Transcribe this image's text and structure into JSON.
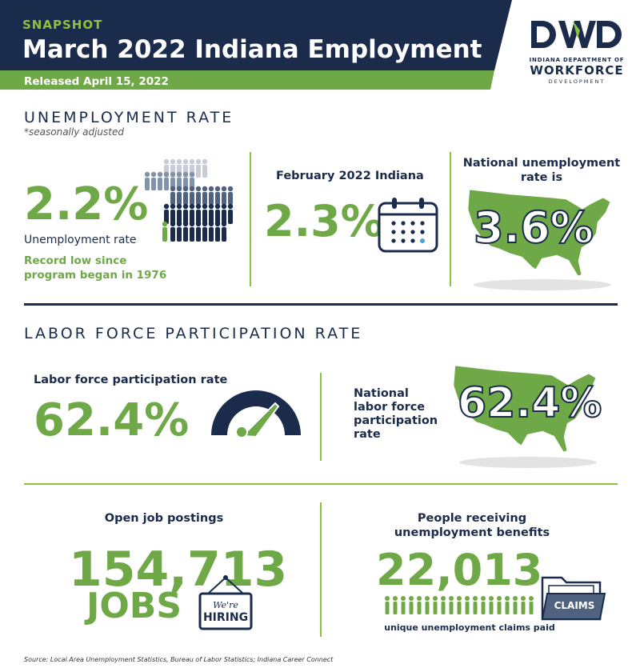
{
  "header": {
    "kicker": "SNAPSHOT",
    "title": "March 2022 Indiana Employment",
    "released": "Released April 15, 2022",
    "logo": {
      "mark": "DWD",
      "line1": "INDIANA DEPARTMENT OF",
      "line2": "WORKFORCE",
      "line3": "DEVELOPMENT"
    },
    "colors": {
      "navy": "#1b2b4b",
      "green": "#8dc13f",
      "text_green": "#6fa846"
    }
  },
  "unemployment": {
    "section_title": "UNEMPLOYMENT RATE",
    "note": "*seasonally adjusted",
    "indiana_rate": "2.2%",
    "indiana_label": "Unemployment rate",
    "record_note_line1": "Record low since",
    "record_note_line2": "program began in 1976",
    "feb_label": "February 2022 Indiana",
    "feb_rate": "2.3%",
    "national_label_line1": "National unemployment",
    "national_label_line2": "rate is",
    "national_rate": "3.6%",
    "icons": [
      "people-crowd-icon",
      "calendar-icon",
      "usa-map-icon"
    ]
  },
  "labor_force": {
    "section_title": "LABOR FORCE PARTICIPATION RATE",
    "indiana_label": "Labor force participation rate",
    "indiana_rate": "62.4%",
    "national_label_line1": "National",
    "national_label_line2": "labor force",
    "national_label_line3": "participation",
    "national_label_line4": "rate",
    "national_rate": "62.4%",
    "icons": [
      "gauge-icon",
      "usa-map-icon"
    ]
  },
  "jobs": {
    "postings_label": "Open job postings",
    "postings_value": "154,713",
    "postings_unit": "JOBS",
    "sign_line1": "We're",
    "sign_line2": "HIRING",
    "benefits_label_line1": "People receiving",
    "benefits_label_line2": "unemployment benefits",
    "benefits_value": "22,013",
    "folder_label": "CLAIMS",
    "claims_caption": "unique unemployment claims paid"
  },
  "source": "Source: Local Area Unemployment Statistics, Bureau of Labor Statistics; Indiana Career Connect"
}
